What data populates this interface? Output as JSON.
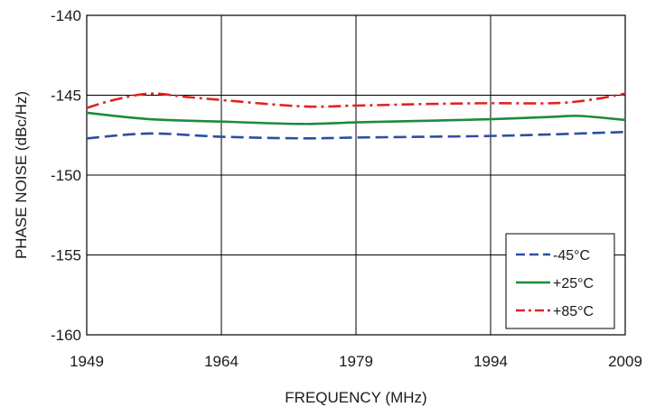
{
  "chart_data": {
    "type": "line",
    "title": "",
    "xlabel": "FREQUENCY (MHz)",
    "ylabel": "PHASE NOISE  (dBc/Hz)",
    "xlim": [
      1949,
      2009
    ],
    "ylim": [
      -160,
      -140
    ],
    "xticks": [
      "1949",
      "1964",
      "1979",
      "1994",
      "2009"
    ],
    "yticks": [
      "-140",
      "-145",
      "-150",
      "-155",
      "-160"
    ],
    "grid": true,
    "legend_position": "bottom-right",
    "series": [
      {
        "name": "-45°C",
        "color": "#2b4fa0",
        "style": "dash",
        "x": [
          1949,
          1956,
          1964,
          1973,
          1979,
          1987,
          1994,
          2001,
          2009
        ],
        "y": [
          -147.7,
          -147.4,
          -147.6,
          -147.7,
          -147.65,
          -147.6,
          -147.55,
          -147.45,
          -147.3
        ]
      },
      {
        "name": "+25°C",
        "color": "#1f8a3c",
        "style": "solid",
        "x": [
          1949,
          1956,
          1964,
          1973,
          1979,
          1987,
          1994,
          2001,
          2004,
          2009
        ],
        "y": [
          -146.1,
          -146.5,
          -146.65,
          -146.8,
          -146.7,
          -146.6,
          -146.5,
          -146.35,
          -146.3,
          -146.55
        ]
      },
      {
        "name": "+85°C",
        "color": "#e02424",
        "style": "dashdot",
        "x": [
          1949,
          1952,
          1956,
          1960,
          1964,
          1973,
          1979,
          1987,
          1994,
          2001,
          2005,
          2009
        ],
        "y": [
          -145.8,
          -145.3,
          -144.9,
          -145.1,
          -145.3,
          -145.7,
          -145.65,
          -145.55,
          -145.5,
          -145.5,
          -145.3,
          -144.9
        ]
      }
    ]
  }
}
